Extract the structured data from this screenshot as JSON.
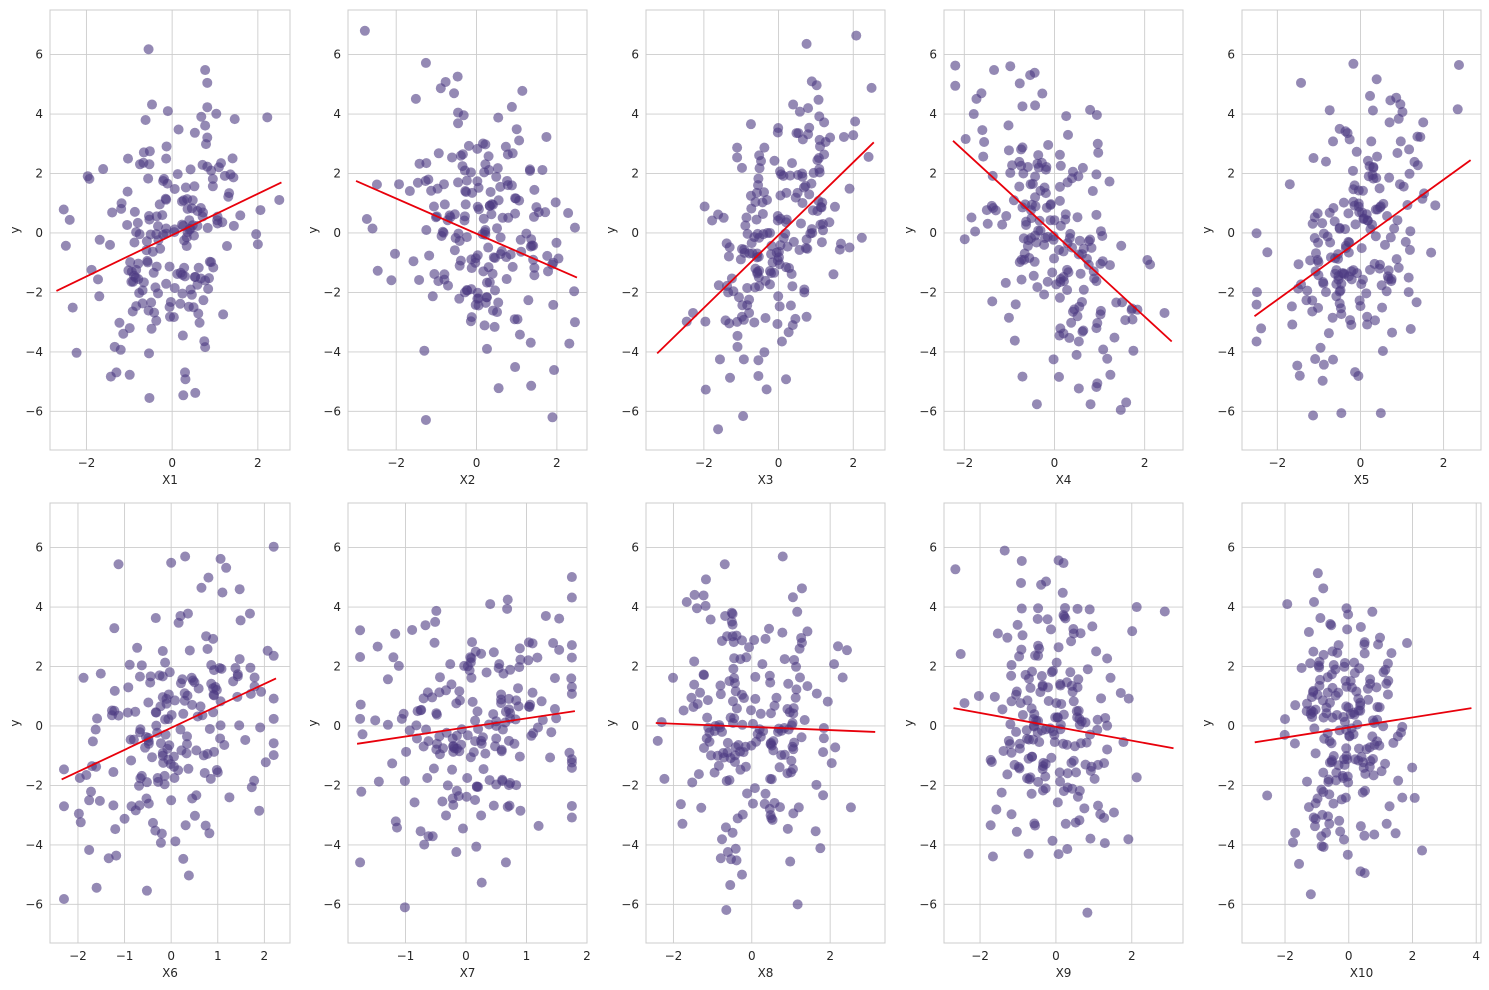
{
  "chart_data": [
    {
      "type": "scatter",
      "xlabel": "X1",
      "ylabel": "y",
      "xlim": [
        -2.85,
        2.75
      ],
      "ylim": [
        -7.3,
        7.5
      ],
      "xticks": [
        -2,
        0,
        2
      ],
      "yticks": [
        -6,
        -4,
        -2,
        0,
        2,
        4,
        6
      ],
      "grid": true,
      "fit_line": {
        "color": "#e8000b",
        "x": [
          -2.7,
          2.55
        ],
        "y": [
          -1.95,
          1.7
        ]
      },
      "series": [
        {
          "x": [],
          "y": []
        }
      ]
    },
    {
      "type": "scatter",
      "xlabel": "X2",
      "ylabel": "y",
      "xlim": [
        -3.2,
        2.75
      ],
      "ylim": [
        -7.3,
        7.5
      ],
      "xticks": [
        -2,
        0,
        2
      ],
      "yticks": [
        -6,
        -4,
        -2,
        0,
        2,
        4,
        6
      ],
      "grid": true,
      "fit_line": {
        "color": "#e8000b",
        "x": [
          -3.0,
          2.5
        ],
        "y": [
          1.75,
          -1.5
        ]
      },
      "series": [
        {
          "x": [],
          "y": []
        }
      ]
    },
    {
      "type": "scatter",
      "xlabel": "X3",
      "ylabel": "y",
      "xlim": [
        -3.55,
        2.85
      ],
      "ylim": [
        -7.3,
        7.5
      ],
      "xticks": [
        -2,
        0,
        2
      ],
      "yticks": [
        -6,
        -4,
        -2,
        0,
        2,
        4,
        6
      ],
      "grid": true,
      "fit_line": {
        "color": "#e8000b",
        "x": [
          -3.25,
          2.55
        ],
        "y": [
          -4.05,
          3.05
        ]
      },
      "series": [
        {
          "x": [],
          "y": []
        }
      ]
    },
    {
      "type": "scatter",
      "xlabel": "X4",
      "ylabel": "y",
      "xlim": [
        -2.45,
        2.85
      ],
      "ylim": [
        -7.3,
        7.5
      ],
      "xticks": [
        -2,
        0,
        2
      ],
      "yticks": [
        -6,
        -4,
        -2,
        0,
        2,
        4,
        6
      ],
      "grid": true,
      "fit_line": {
        "color": "#e8000b",
        "x": [
          -2.25,
          2.6
        ],
        "y": [
          3.1,
          -3.65
        ]
      },
      "series": [
        {
          "x": [],
          "y": []
        }
      ]
    },
    {
      "type": "scatter",
      "xlabel": "X5",
      "ylabel": "y",
      "xlim": [
        -2.85,
        2.9
      ],
      "ylim": [
        -7.3,
        7.5
      ],
      "xticks": [
        -2,
        0,
        2
      ],
      "yticks": [
        -6,
        -4,
        -2,
        0,
        2,
        4,
        6
      ],
      "grid": true,
      "fit_line": {
        "color": "#e8000b",
        "x": [
          -2.55,
          2.65
        ],
        "y": [
          -2.8,
          2.45
        ]
      },
      "series": [
        {
          "x": [],
          "y": []
        }
      ]
    },
    {
      "type": "scatter",
      "xlabel": "X6",
      "ylabel": "y",
      "xlim": [
        -2.6,
        2.55
      ],
      "ylim": [
        -7.3,
        7.5
      ],
      "xticks": [
        -2,
        -1,
        0,
        1,
        2
      ],
      "yticks": [
        -6,
        -4,
        -2,
        0,
        2,
        4,
        6
      ],
      "grid": true,
      "fit_line": {
        "color": "#e8000b",
        "x": [
          -2.35,
          2.25
        ],
        "y": [
          -1.8,
          1.6
        ]
      },
      "series": [
        {
          "x": [],
          "y": []
        }
      ]
    },
    {
      "type": "scatter",
      "xlabel": "X7",
      "ylabel": "y",
      "xlim": [
        -1.95,
        2.0
      ],
      "ylim": [
        -7.3,
        7.5
      ],
      "xticks": [
        -1,
        0,
        1,
        2
      ],
      "yticks": [
        -6,
        -4,
        -2,
        0,
        2,
        4,
        6
      ],
      "grid": true,
      "fit_line": {
        "color": "#e8000b",
        "x": [
          -1.8,
          1.8
        ],
        "y": [
          -0.6,
          0.5
        ]
      },
      "series": [
        {
          "x": [],
          "y": []
        }
      ]
    },
    {
      "type": "scatter",
      "xlabel": "X8",
      "ylabel": "y",
      "xlim": [
        -2.7,
        3.4
      ],
      "ylim": [
        -7.3,
        7.5
      ],
      "xticks": [
        -2,
        0,
        2
      ],
      "yticks": [
        -6,
        -4,
        -2,
        0,
        2,
        4,
        6
      ],
      "grid": true,
      "fit_line": {
        "color": "#e8000b",
        "x": [
          -2.45,
          3.15
        ],
        "y": [
          0.1,
          -0.2
        ]
      },
      "series": [
        {
          "x": [],
          "y": []
        }
      ]
    },
    {
      "type": "scatter",
      "xlabel": "X9",
      "ylabel": "y",
      "xlim": [
        -2.95,
        3.35
      ],
      "ylim": [
        -7.3,
        7.5
      ],
      "xticks": [
        -2,
        0,
        2
      ],
      "yticks": [
        -6,
        -4,
        -2,
        0,
        2,
        4,
        6
      ],
      "grid": true,
      "fit_line": {
        "color": "#e8000b",
        "x": [
          -2.7,
          3.1
        ],
        "y": [
          0.6,
          -0.75
        ]
      },
      "series": [
        {
          "x": [],
          "y": []
        }
      ]
    },
    {
      "type": "scatter",
      "xlabel": "X10",
      "ylabel": "y",
      "xlim": [
        -3.35,
        4.15
      ],
      "ylim": [
        -7.3,
        7.5
      ],
      "xticks": [
        -2,
        0,
        2,
        4
      ],
      "yticks": [
        -6,
        -4,
        -2,
        0,
        2,
        4,
        6
      ],
      "grid": true,
      "fit_line": {
        "color": "#e8000b",
        "x": [
          -2.95,
          3.85
        ],
        "y": [
          -0.55,
          0.6
        ]
      },
      "series": [
        {
          "x": [],
          "y": []
        }
      ]
    }
  ]
}
